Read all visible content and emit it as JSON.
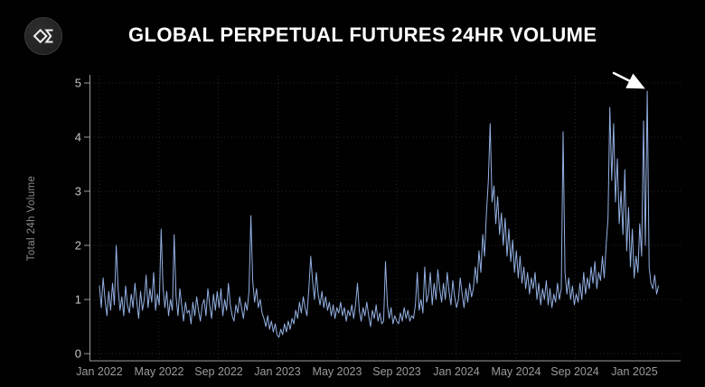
{
  "header": {
    "title": "GLOBAL PERPETUAL FUTURES 24HR VOLUME",
    "logo_icon": "diamond-sigma-logo"
  },
  "colors": {
    "background": "#000000",
    "title": "#ffffff",
    "line": "#94b1e4",
    "grid": "#282828",
    "axis": "#9a9a9a",
    "y_tick_labels": "#c6c6c6",
    "x_tick_labels": "#9c9c9c",
    "y_axis_title": "#8c8c8c",
    "arrow": "#ffffff"
  },
  "chart_data": {
    "type": "line",
    "title": "GLOBAL PERPETUAL FUTURES 24HR VOLUME",
    "series_name": "Total 24h Volume",
    "ylabel": "Total 24h Volume",
    "xlabel": "",
    "grid": true,
    "legend_position": "none",
    "ylim": [
      0,
      5
    ],
    "y_ticks": [
      "0",
      "1",
      "2",
      "3",
      "4",
      "5"
    ],
    "x_tick_labels": [
      "Jan 2022",
      "May 2022",
      "Sep 2022",
      "Jan 2023",
      "May 2023",
      "Sep 2023",
      "Jan 2024",
      "May 2024",
      "Sep 2024",
      "Jan 2025"
    ],
    "x_tick_interval_months": 4,
    "x_start": "Jan 2022",
    "x_end": "Feb 2025",
    "x_span_months": 37.6,
    "annotation": {
      "shape": "arrow",
      "target": "all-time-high spike near Jan 2025",
      "value_at_target": 4.85
    },
    "values": [
      1.25,
      0.85,
      1.4,
      1.0,
      0.7,
      1.15,
      0.8,
      1.3,
      0.9,
      2.0,
      1.2,
      0.8,
      1.05,
      0.7,
      1.25,
      0.9,
      0.75,
      1.1,
      0.85,
      1.3,
      0.95,
      0.65,
      1.15,
      0.8,
      1.0,
      1.45,
      0.85,
      1.2,
      0.95,
      1.5,
      0.8,
      1.1,
      0.9,
      2.3,
      1.25,
      0.85,
      1.15,
      0.7,
      1.0,
      0.8,
      2.2,
      1.05,
      0.7,
      1.2,
      0.9,
      0.6,
      0.95,
      0.75,
      0.8,
      0.55,
      0.95,
      0.7,
      1.05,
      0.8,
      0.6,
      0.9,
      1.0,
      0.7,
      1.2,
      0.9,
      0.65,
      1.1,
      0.8,
      1.15,
      0.85,
      1.2,
      0.7,
      1.0,
      0.8,
      1.3,
      0.9,
      0.7,
      0.6,
      0.9,
      0.75,
      1.05,
      0.85,
      0.65,
      0.95,
      0.8,
      1.15,
      2.55,
      1.35,
      0.95,
      1.2,
      0.85,
      1.0,
      0.75,
      0.65,
      0.5,
      0.7,
      0.45,
      0.6,
      0.4,
      0.55,
      0.35,
      0.3,
      0.45,
      0.35,
      0.55,
      0.4,
      0.6,
      0.45,
      0.65,
      0.55,
      0.8,
      0.65,
      0.95,
      0.75,
      1.05,
      0.85,
      0.7,
      1.2,
      1.8,
      1.35,
      1.0,
      1.5,
      1.1,
      0.9,
      1.15,
      0.85,
      1.05,
      0.8,
      0.95,
      0.7,
      0.9,
      0.65,
      0.85,
      0.75,
      0.95,
      0.7,
      0.85,
      0.6,
      0.8,
      0.7,
      0.9,
      0.65,
      0.9,
      1.3,
      0.8,
      0.6,
      0.85,
      0.7,
      0.95,
      0.7,
      0.5,
      0.8,
      0.65,
      0.9,
      0.6,
      0.75,
      0.55,
      0.6,
      1.7,
      0.9,
      0.65,
      0.85,
      0.55,
      0.7,
      0.6,
      0.55,
      0.75,
      0.6,
      0.85,
      0.65,
      0.8,
      0.6,
      0.7,
      0.65,
      0.9,
      1.5,
      0.8,
      1.0,
      0.75,
      1.6,
      0.95,
      1.1,
      1.5,
      0.9,
      1.3,
      1.0,
      1.55,
      1.2,
      0.95,
      1.3,
      1.0,
      1.5,
      1.15,
      0.9,
      1.35,
      1.05,
      0.85,
      1.0,
      1.4,
      1.1,
      0.85,
      1.2,
      0.95,
      1.3,
      1.05,
      1.2,
      1.6,
      1.3,
      1.9,
      1.5,
      2.2,
      1.8,
      2.6,
      3.2,
      4.25,
      2.8,
      3.1,
      2.4,
      2.9,
      2.2,
      2.6,
      2.0,
      2.5,
      1.8,
      2.3,
      1.7,
      2.1,
      1.5,
      1.9,
      1.4,
      1.8,
      1.3,
      1.6,
      1.2,
      1.5,
      1.1,
      1.4,
      1.2,
      1.5,
      1.0,
      1.3,
      0.9,
      1.2,
      1.0,
      1.35,
      0.9,
      1.2,
      0.85,
      1.1,
      0.95,
      1.3,
      1.0,
      1.2,
      4.1,
      1.5,
      1.1,
      1.4,
      1.0,
      1.25,
      0.9,
      1.1,
      0.95,
      1.3,
      1.0,
      1.5,
      1.1,
      1.4,
      1.2,
      1.6,
      1.3,
      1.7,
      1.2,
      1.5,
      1.35,
      1.8,
      1.4,
      2.0,
      2.5,
      4.55,
      3.2,
      4.25,
      2.8,
      3.6,
      2.4,
      3.0,
      2.2,
      3.4,
      1.9,
      2.7,
      1.6,
      2.3,
      1.4,
      1.8,
      1.5,
      2.4,
      1.8,
      4.3,
      2.0,
      4.85,
      1.6,
      1.3,
      1.2,
      1.45,
      1.1,
      1.25
    ]
  }
}
